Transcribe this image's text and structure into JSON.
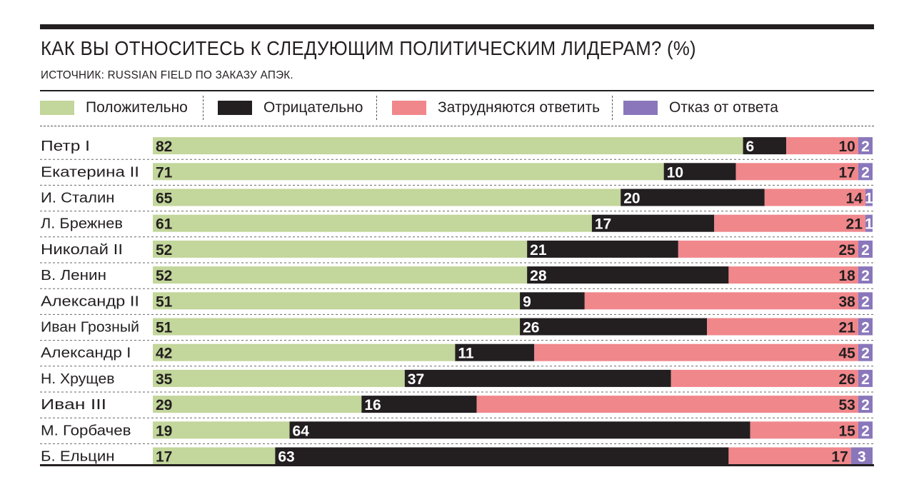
{
  "title": "КАК ВЫ ОТНОСИТЕСЬ К СЛЕДУЮЩИМ ПОЛИТИЧЕСКИМ ЛИДЕРАМ? (%)",
  "source": "ИСТОЧНИК: RUSSIAN FIELD ПО ЗАКАЗУ АПЭК.",
  "legend": [
    {
      "label": "Положительно",
      "color": "#c3d69b"
    },
    {
      "label": "Отрицательно",
      "color": "#231f20"
    },
    {
      "label": "Затрудняются ответить",
      "color": "#f0878b"
    },
    {
      "label": "Отказ от ответа",
      "color": "#8a77bb"
    }
  ],
  "chart_data": {
    "type": "bar",
    "stacked": true,
    "orientation": "horizontal",
    "title": "КАК ВЫ ОТНОСИТЕСЬ К СЛЕДУЮЩИМ ПОЛИТИЧЕСКИМ ЛИДЕРАМ? (%)",
    "categories": [
      "Петр I",
      "Екатерина II",
      "И. Сталин",
      "Л. Брежнев",
      "Николай II",
      "В. Ленин",
      "Александр II",
      "Иван Грозный",
      "Александр I",
      "Н. Хрущев",
      "Иван III",
      "М. Горбачев",
      "Б. Ельцин"
    ],
    "series": [
      {
        "name": "Положительно",
        "color": "#c3d69b",
        "values": [
          82,
          71,
          65,
          61,
          52,
          52,
          51,
          51,
          42,
          35,
          29,
          19,
          17
        ]
      },
      {
        "name": "Отрицательно",
        "color": "#231f20",
        "values": [
          6,
          10,
          20,
          17,
          21,
          28,
          9,
          26,
          11,
          37,
          16,
          64,
          63
        ]
      },
      {
        "name": "Затрудняются ответить",
        "color": "#f0878b",
        "values": [
          10,
          17,
          14,
          21,
          25,
          18,
          38,
          21,
          45,
          26,
          53,
          15,
          17
        ]
      },
      {
        "name": "Отказ от ответа",
        "color": "#8a77bb",
        "values": [
          2,
          2,
          1,
          1,
          2,
          2,
          2,
          2,
          2,
          2,
          2,
          2,
          3
        ]
      }
    ],
    "xlim": [
      0,
      100
    ]
  }
}
